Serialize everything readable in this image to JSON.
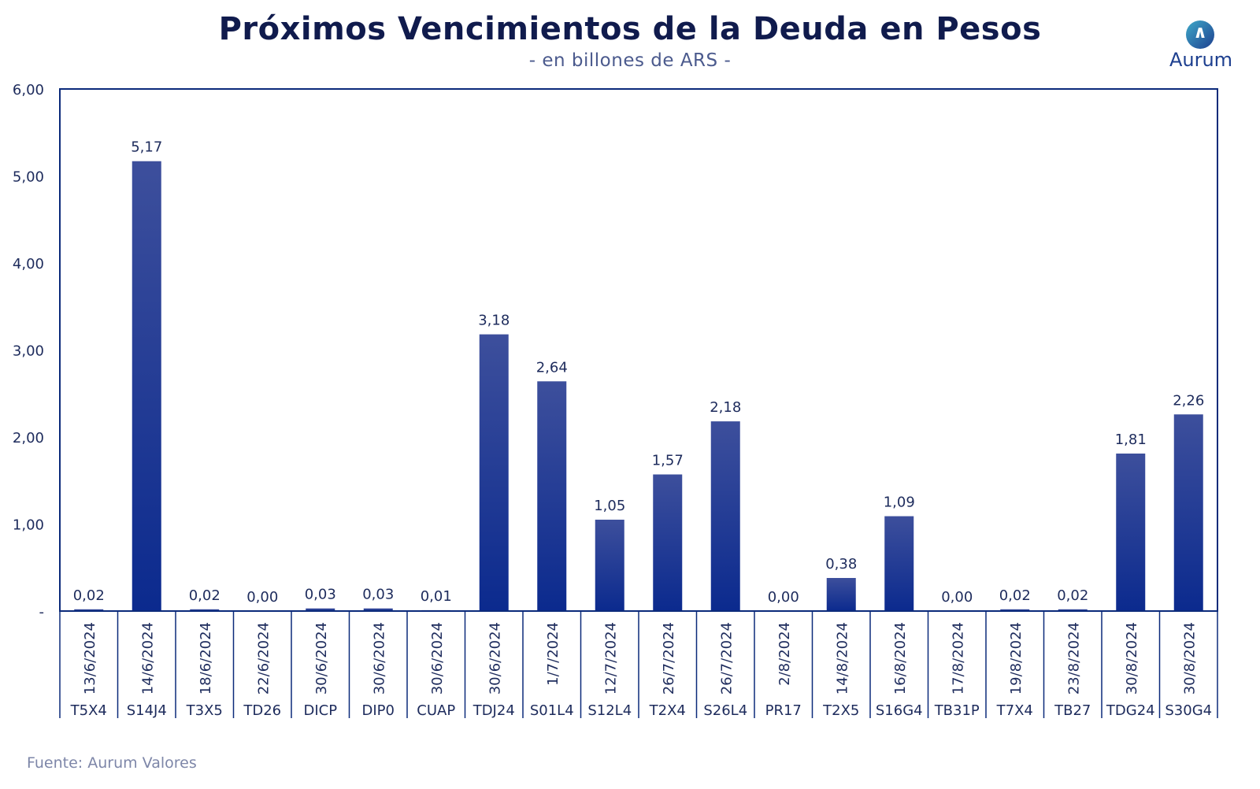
{
  "title": "Próximos Vencimientos de la Deuda en Pesos",
  "subtitle": "- en billones de ARS -",
  "logo": {
    "word": "Aurum",
    "icon": "aurum-logo-icon",
    "symbol": "∧"
  },
  "source": "Fuente: Aurum Valores",
  "chart_data": {
    "type": "bar",
    "categories": [
      {
        "date": "13/6/2024",
        "ticker": "T5X4"
      },
      {
        "date": "14/6/2024",
        "ticker": "S14J4"
      },
      {
        "date": "18/6/2024",
        "ticker": "T3X5"
      },
      {
        "date": "22/6/2024",
        "ticker": "TD26"
      },
      {
        "date": "30/6/2024",
        "ticker": "DICP"
      },
      {
        "date": "30/6/2024",
        "ticker": "DIP0"
      },
      {
        "date": "30/6/2024",
        "ticker": "CUAP"
      },
      {
        "date": "30/6/2024",
        "ticker": "TDJ24"
      },
      {
        "date": "1/7/2024",
        "ticker": "S01L4"
      },
      {
        "date": "12/7/2024",
        "ticker": "S12L4"
      },
      {
        "date": "26/7/2024",
        "ticker": "T2X4"
      },
      {
        "date": "26/7/2024",
        "ticker": "S26L4"
      },
      {
        "date": "2/8/2024",
        "ticker": "PR17"
      },
      {
        "date": "14/8/2024",
        "ticker": "T2X5"
      },
      {
        "date": "16/8/2024",
        "ticker": "S16G4"
      },
      {
        "date": "17/8/2024",
        "ticker": "TB31P"
      },
      {
        "date": "19/8/2024",
        "ticker": "T7X4"
      },
      {
        "date": "23/8/2024",
        "ticker": "TB27"
      },
      {
        "date": "30/8/2024",
        "ticker": "TDG24"
      },
      {
        "date": "30/8/2024",
        "ticker": "S30G4"
      }
    ],
    "values": [
      0.02,
      5.17,
      0.02,
      0.0,
      0.03,
      0.03,
      0.01,
      3.18,
      2.64,
      1.05,
      1.57,
      2.18,
      0.0,
      0.38,
      1.09,
      0.0,
      0.02,
      0.02,
      1.81,
      2.26
    ],
    "value_labels": [
      "0,02",
      "5,17",
      "0,02",
      "0,00",
      "0,03",
      "0,03",
      "0,01",
      "3,18",
      "2,64",
      "1,05",
      "1,57",
      "2,18",
      "0,00",
      "0,38",
      "1,09",
      "0,00",
      "0,02",
      "0,02",
      "1,81",
      "2,26"
    ],
    "y_ticks": [
      0,
      1,
      2,
      3,
      4,
      5,
      6
    ],
    "y_tick_labels": [
      "-",
      "1,00",
      "2,00",
      "3,00",
      "4,00",
      "5,00",
      "6,00"
    ],
    "ylim": [
      0,
      6
    ],
    "grid": false,
    "legend": "none",
    "colors": {
      "bar_top": "#3d4f9c",
      "bar_bottom": "#0b2a8e",
      "axis": "#0b2a7a",
      "text": "#1d2b5c"
    }
  }
}
